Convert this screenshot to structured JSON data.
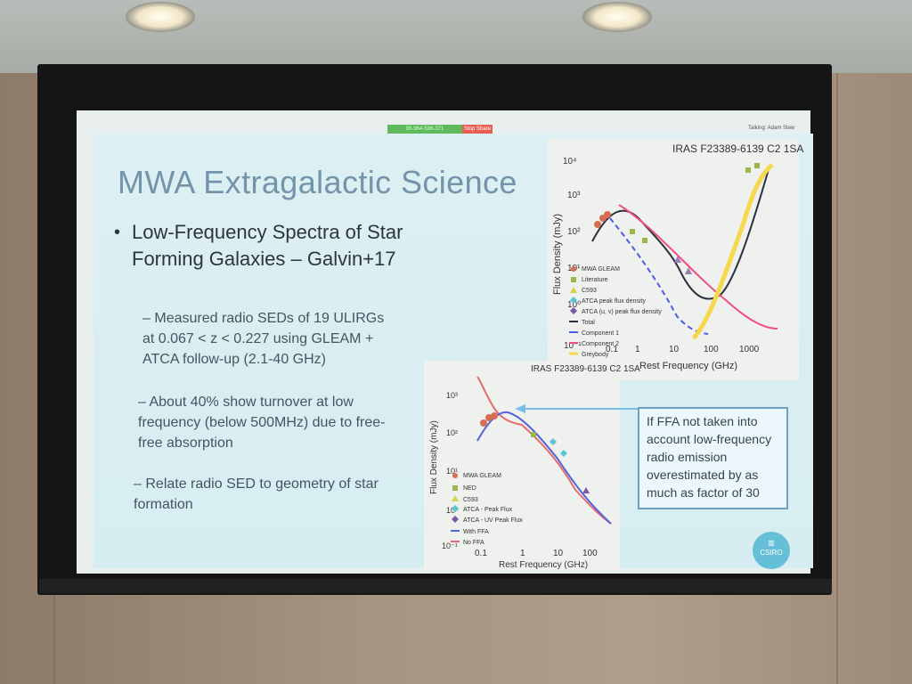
{
  "toolbar": {
    "meeting_id": "95-964-596-371",
    "stop_share": "Stop Share",
    "talking": "Talking: Adam Stew"
  },
  "slide": {
    "title": "MWA Extragalactic Science",
    "bullet_main": "Low-Frequency Spectra of Star Forming Galaxies – Galvin+17",
    "subpoints": [
      "Measured radio SEDs of 19 ULIRGs at 0.067 < z < 0.227 using GLEAM + ATCA follow-up (2.1-40 GHz)",
      "About 40% show turnover at low frequency (below 500MHz) due to free-free absorption",
      "Relate radio SED to geometry of star formation"
    ],
    "callout": "If FFA not taken into account low-frequency radio emission overestimated by as much as factor of 30",
    "logo_text": "CSIRO"
  },
  "chart_data": [
    {
      "type": "line",
      "title": "IRAS F23389-6139 C2 1SA",
      "xlabel": "Rest Frequency (GHz)",
      "ylabel": "Flux Density (mJy)",
      "x_ticks": [
        "0.1",
        "1",
        "10",
        "100",
        "1000"
      ],
      "y_ticks": [
        "10^4",
        "10^3",
        "10^2",
        "10^1",
        "10^0",
        "10^-1"
      ],
      "legend": [
        "MWA GLEAM",
        "Literature",
        "C593",
        "ATCA peak flux density",
        "ATCA (u, v) peak flux density",
        "Total",
        "Component 1",
        "Component 2",
        "Greybody"
      ]
    },
    {
      "type": "line",
      "title": "IRAS F23389-6139 C2 1SA",
      "xlabel": "Rest Frequency (GHz)",
      "ylabel": "Flux Density (mJy)",
      "x_ticks": [
        "0.1",
        "1",
        "10",
        "100"
      ],
      "y_ticks": [
        "10^3",
        "10^2",
        "10^1",
        "10^0",
        "10^-1"
      ],
      "legend": [
        "MWA GLEAM",
        "NED",
        "C593",
        "ATCA - Peak Flux",
        "ATCA - UV Peak Flux",
        "With FFA",
        "No FFA"
      ]
    }
  ]
}
